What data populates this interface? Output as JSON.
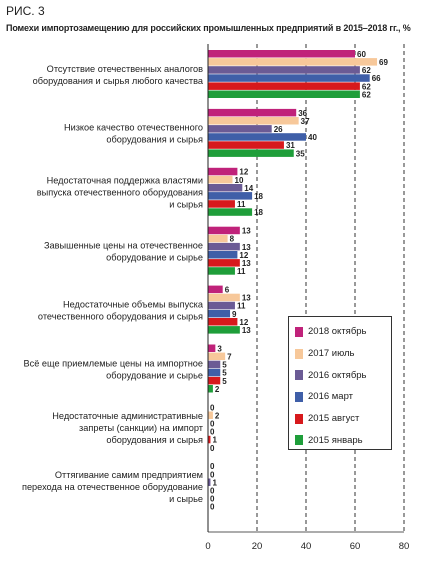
{
  "figure_label": "РИС. 3",
  "chart_data": {
    "type": "bar",
    "orientation": "horizontal",
    "title": "Помехи импортозамещению для российских промышленных предприятий в 2015–2018 гг., %",
    "xlabel": "",
    "ylabel": "",
    "xlim": [
      0,
      80
    ],
    "xticks": [
      "0",
      "20",
      "40",
      "60",
      "80"
    ],
    "grid": "vertical dashed",
    "legend_position": "bottom-right",
    "categories": [
      [
        "Отсутствие отечественных аналогов",
        "оборудования и сырья любого качества"
      ],
      [
        "Низкое качество отечественного",
        "оборудования и сырья"
      ],
      [
        "Недостаточная поддержка властями",
        "выпуска отечественного оборудования",
        "и сырья"
      ],
      [
        "Завышенные цены на отечественное",
        "оборудование и сырье"
      ],
      [
        "Недостаточные объемы выпуска",
        "отечественного оборудования и сырья"
      ],
      [
        "Всё еще приемлемые цены на импортное",
        "оборудование и сырье"
      ],
      [
        "Недостаточные административные",
        "запреты (санкции) на импорт",
        "оборудования и сырья"
      ],
      [
        "Оттягивание самим предприятием",
        "перехода на отечественное оборудование",
        "и сырье"
      ]
    ],
    "series": [
      {
        "name": "2018 октябрь",
        "color": "#c0227a",
        "values": [
          60,
          36,
          12,
          13,
          6,
          3,
          0,
          0
        ]
      },
      {
        "name": "2017 июль",
        "color": "#f7c89a",
        "values": [
          69,
          37,
          10,
          8,
          13,
          7,
          2,
          0
        ]
      },
      {
        "name": "2016 октябрь",
        "color": "#6b5b95",
        "values": [
          62,
          26,
          14,
          13,
          11,
          5,
          0,
          1
        ]
      },
      {
        "name": "2016 март",
        "color": "#3f5fa8",
        "values": [
          66,
          40,
          18,
          12,
          9,
          5,
          0,
          0
        ]
      },
      {
        "name": "2015 август",
        "color": "#d7191c",
        "values": [
          62,
          31,
          11,
          13,
          12,
          5,
          1,
          0
        ]
      },
      {
        "name": "2015 январь",
        "color": "#1f9e3a",
        "values": [
          62,
          35,
          18,
          11,
          13,
          2,
          0,
          0
        ]
      }
    ]
  }
}
